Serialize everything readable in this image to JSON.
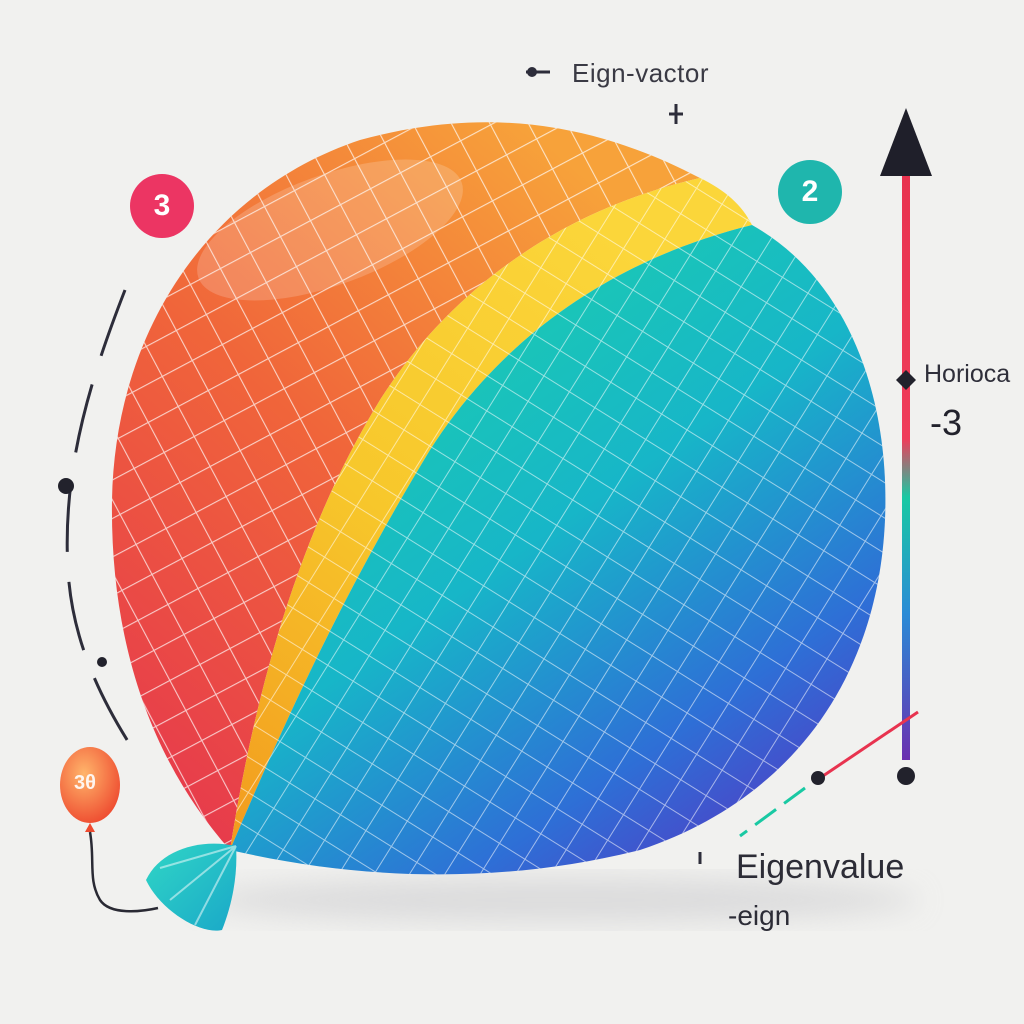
{
  "labels": {
    "eigenvector": "Eign-vactor",
    "axis_label": "Horioca",
    "axis_value": "-3",
    "eigenvalue": "Eigenvalue",
    "eigenvalue_sub": "-eign",
    "badge_left": "3",
    "badge_right": "2",
    "small_balloon": "3θ"
  },
  "colors": {
    "background": "#f1f1ef",
    "badge_left": "#ec3563",
    "badge_right": "#1fb6ad",
    "axis_top": "#e8334f",
    "axis_bottom": "#6a2fb0",
    "segment_left_start": "#e5334f",
    "segment_left_end": "#f7a23a",
    "segment_mid": "#f7c72b",
    "segment_right_start": "#1dd4a8",
    "segment_right_end": "#5a2fc0"
  },
  "icons": [
    "arrow-up-icon",
    "dot-marker-icon",
    "balloon-icon"
  ]
}
